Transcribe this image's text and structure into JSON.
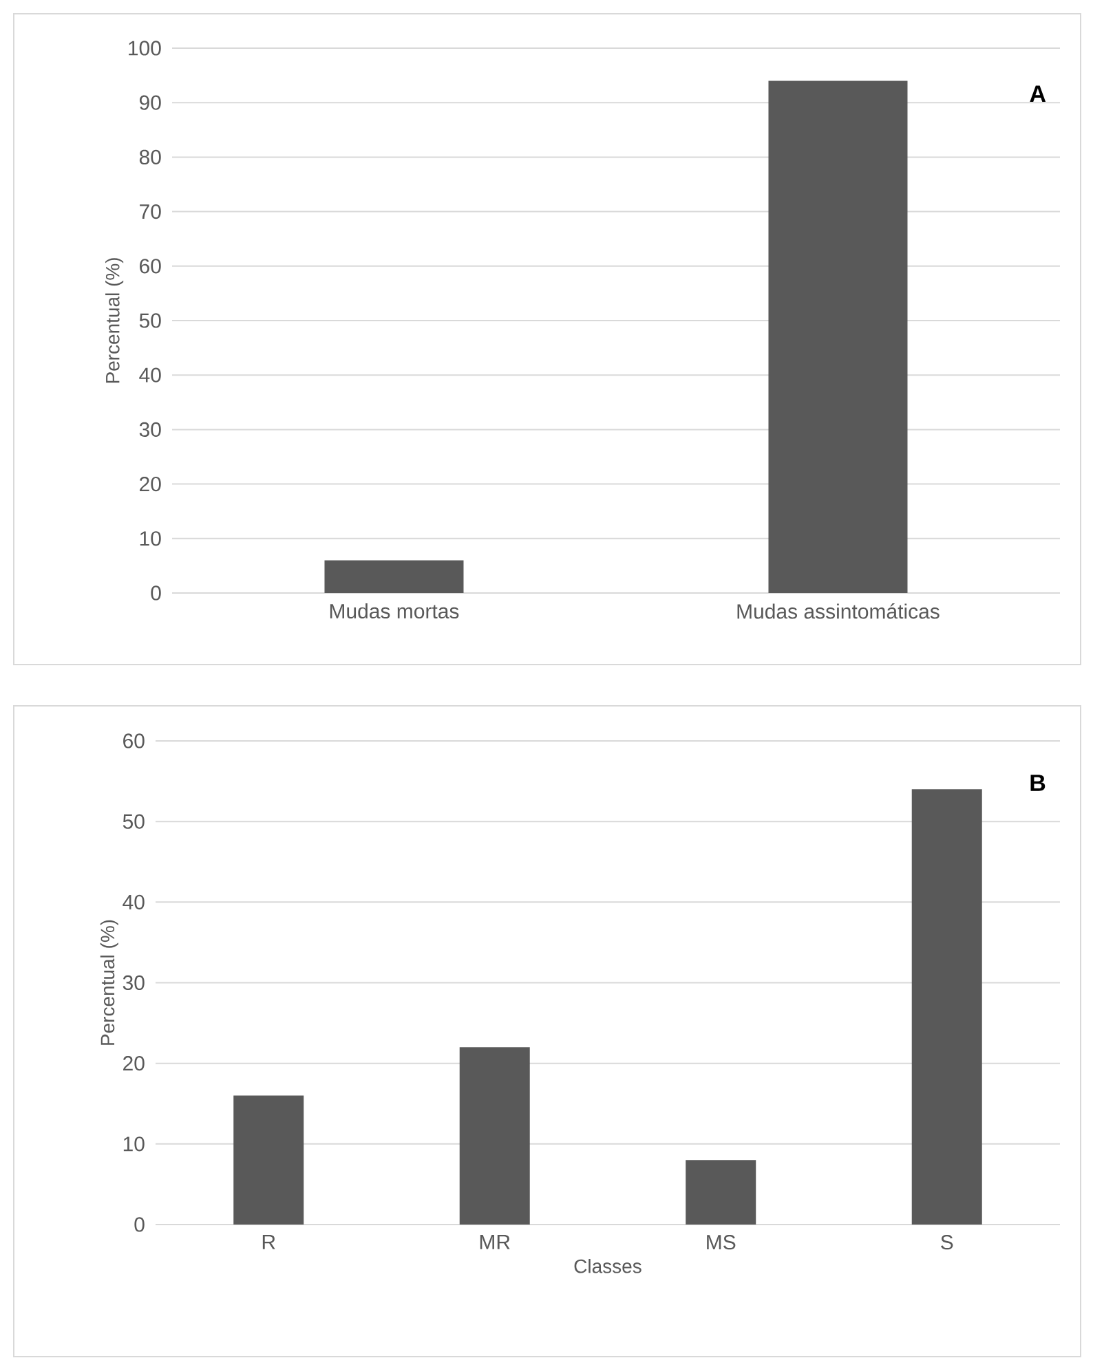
{
  "chart_data": [
    {
      "type": "bar",
      "categories": [
        "Mudas mortas",
        "Mudas assintomáticas"
      ],
      "values": [
        6,
        94
      ],
      "color": "#595959",
      "ylabel": "Percentual (%)",
      "ylim": [
        0,
        100
      ],
      "yticks": [
        0,
        10,
        20,
        30,
        40,
        50,
        60,
        70,
        80,
        90,
        100
      ],
      "grid": "y",
      "annotations": [
        "A"
      ]
    },
    {
      "type": "bar",
      "categories": [
        "R",
        "MR",
        "MS",
        "S"
      ],
      "values": [
        16,
        22,
        8,
        54
      ],
      "color": "#595959",
      "xlabel": "Classes",
      "ylabel": "Percentual (%)",
      "ylim": [
        0,
        60
      ],
      "yticks": [
        0,
        10,
        20,
        30,
        40,
        50,
        60
      ],
      "grid": "y",
      "annotations": [
        "B"
      ]
    }
  ]
}
